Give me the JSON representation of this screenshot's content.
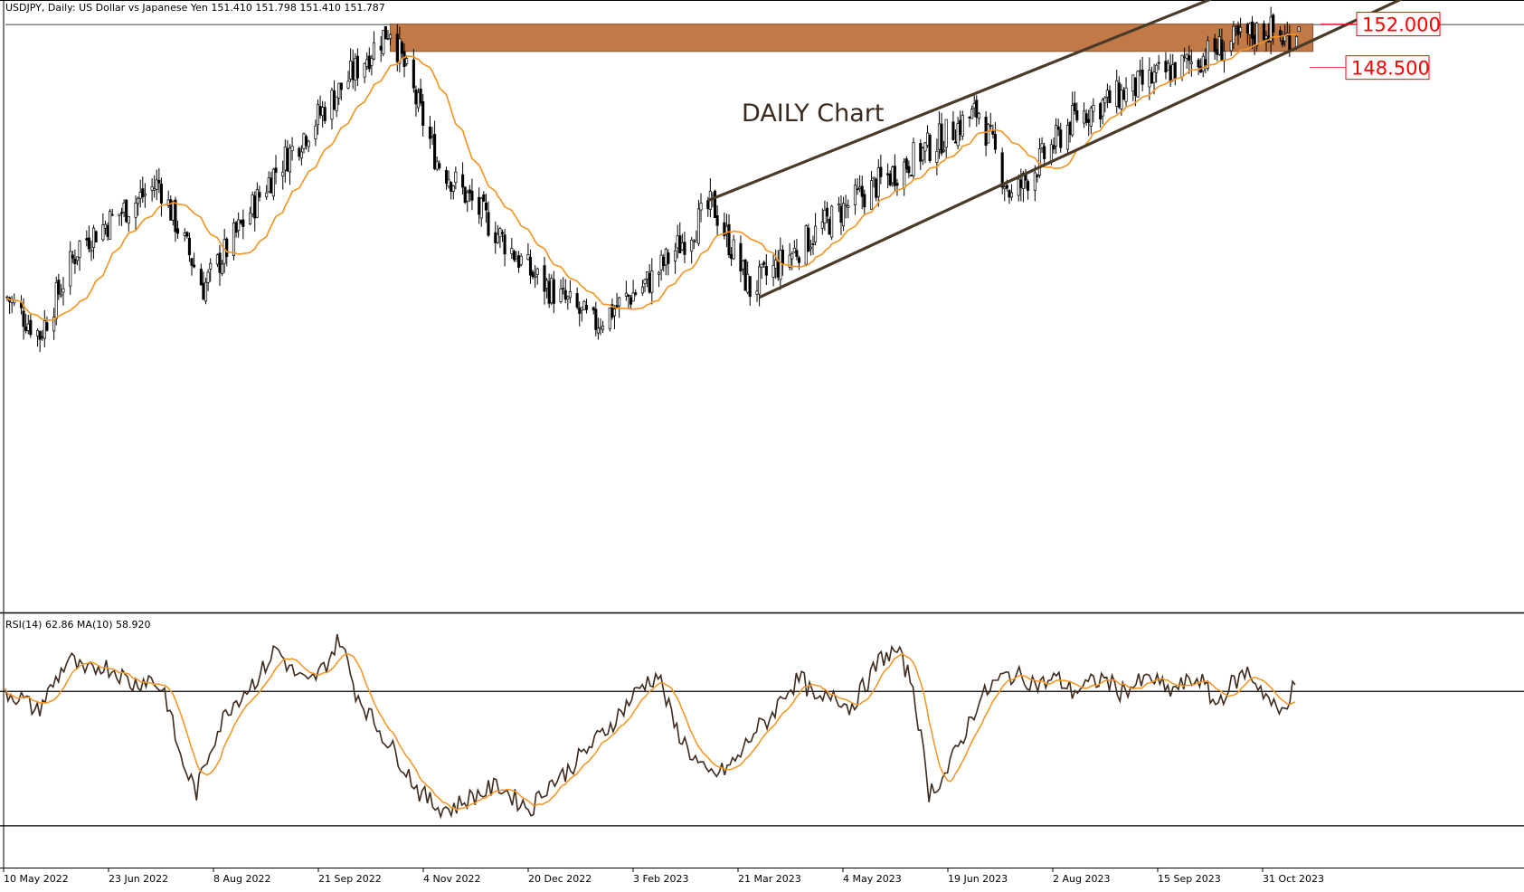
{
  "header": {
    "symbol_line": "USDJPY, Daily:  US Dollar vs Japanese Yen  151.410 151.798 151.410 151.787",
    "annotation": "DAILY Chart"
  },
  "rsi_panel": {
    "label": "RSI(14) 62.86 MA(10) 58.920"
  },
  "levels": [
    {
      "value": 152.0,
      "label": "152.000"
    },
    {
      "value": 148.5,
      "label": "148.500"
    }
  ],
  "colors": {
    "ma": "#f7931e",
    "resistance_zone": "#c17a47",
    "channel": "#4a3a28",
    "candle": "#000000",
    "level_text": "#ff0000",
    "rsi_line": "#3d2b1f",
    "rsi_ma": "#f7931e"
  },
  "chart_data": [
    {
      "type": "candlestick",
      "title": "",
      "x_tick_labels": [
        "10 May 2022",
        "23 Jun 2022",
        "8 Aug 2022",
        "21 Sep 2022",
        "4 Nov 2022",
        "20 Dec 2022",
        "3 Feb 2023",
        "21 Mar 2023",
        "4 May 2023",
        "19 Jun 2023",
        "2 Aug 2023",
        "15 Sep 2023",
        "31 Oct 2023"
      ],
      "ylim": [
        105,
        153.5
      ],
      "grid": false,
      "overlays": [
        "moving-average",
        "ascending-channel",
        "resistance-zone"
      ],
      "anchors": [
        {
          "date": "2022-05-10",
          "close": 130.0
        },
        {
          "date": "2022-05-24",
          "close": 127.0
        },
        {
          "date": "2022-06-10",
          "close": 134.3
        },
        {
          "date": "2022-07-14",
          "close": 139.2
        },
        {
          "date": "2022-08-02",
          "close": 130.8
        },
        {
          "date": "2022-09-01",
          "close": 140.0
        },
        {
          "date": "2022-09-22",
          "close": 145.0
        },
        {
          "date": "2022-10-21",
          "close": 151.8
        },
        {
          "date": "2022-11-10",
          "close": 141.0
        },
        {
          "date": "2022-12-20",
          "close": 132.0
        },
        {
          "date": "2023-01-16",
          "close": 127.8
        },
        {
          "date": "2023-02-10",
          "close": 131.5
        },
        {
          "date": "2023-03-08",
          "close": 137.5
        },
        {
          "date": "2023-03-24",
          "close": 130.6
        },
        {
          "date": "2023-05-02",
          "close": 137.0
        },
        {
          "date": "2023-06-30",
          "close": 145.0
        },
        {
          "date": "2023-07-14",
          "close": 138.0
        },
        {
          "date": "2023-08-10",
          "close": 144.5
        },
        {
          "date": "2023-09-15",
          "close": 147.8
        },
        {
          "date": "2023-10-31",
          "close": 151.7
        },
        {
          "date": "2023-11-08",
          "close": 150.7
        },
        {
          "date": "2023-11-14",
          "close": 151.8
        }
      ],
      "resistance_zone": [
        149.8,
        152.0
      ],
      "channel_upper": [
        {
          "date": "2023-03-06",
          "price": 137.8
        },
        {
          "date": "2023-11-28",
          "price": 157.9
        }
      ],
      "channel_lower": [
        {
          "date": "2023-03-28",
          "price": 130.0
        },
        {
          "date": "2023-11-28",
          "price": 151.4
        }
      ]
    },
    {
      "type": "line",
      "title": "",
      "series": [
        {
          "values": [
            70,
            68,
            64,
            72,
            80,
            75,
            78,
            76,
            72,
            74,
            70,
            50,
            40,
            55,
            65,
            70,
            75,
            83,
            76,
            72,
            77,
            86,
            70,
            62,
            55,
            48,
            40,
            36,
            35,
            38,
            40,
            42,
            38,
            35,
            42,
            45,
            50,
            55,
            60,
            66,
            72,
            75,
            60,
            52,
            45,
            46,
            50,
            58,
            62,
            70,
            74,
            66,
            70,
            65,
            72,
            80,
            82,
            72,
            40,
            45,
            55,
            66,
            72,
            75,
            74,
            72,
            74,
            70,
            72,
            74,
            70,
            72,
            74,
            70,
            72,
            74,
            66,
            72,
            76,
            70,
            63,
            72
          ]
        }
      ],
      "ylim": [
        20,
        90
      ],
      "levels": [
        70,
        30
      ]
    }
  ]
}
